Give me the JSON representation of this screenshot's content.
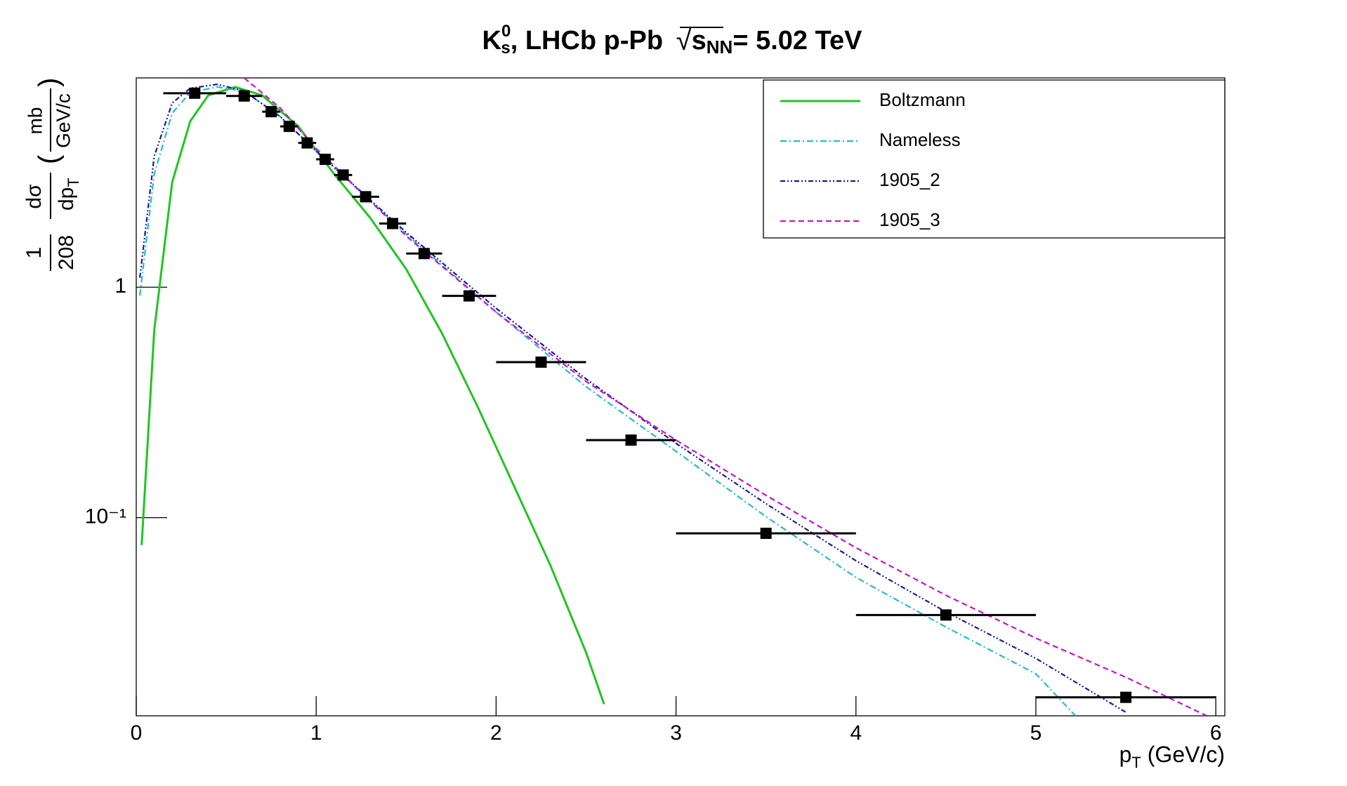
{
  "chart_data": {
    "type": "scatter",
    "title": [
      "K",
      "0",
      "s",
      ", LHCb p-Pb ",
      "√",
      "s",
      "NN",
      "= 5.02 TeV"
    ],
    "x_label": [
      "p",
      "T",
      " (GeV/c)"
    ],
    "y_label": [
      "1",
      "208",
      "dσ",
      "dp",
      "T",
      "(",
      "mb",
      "GeV/c",
      ")"
    ],
    "xlim": [
      0,
      6.05
    ],
    "xticks": [
      0,
      1,
      2,
      3,
      4,
      5,
      6
    ],
    "ylim": [
      0.0138,
      8.1
    ],
    "yticks": [
      1,
      {
        "value": 0.1,
        "label": "10⁻¹"
      }
    ],
    "log_y": true,
    "legend": "top-right",
    "points": {
      "color": "#000000",
      "x": [
        0.325,
        0.6,
        0.75,
        0.85,
        0.95,
        1.05,
        1.15,
        1.275,
        1.425,
        1.6,
        1.85,
        2.25,
        2.75,
        3.5,
        4.5,
        5.5
      ],
      "values": [
        6.95,
        6.76,
        5.78,
        4.99,
        4.23,
        3.59,
        3.07,
        2.47,
        1.89,
        1.4,
        0.917,
        0.473,
        0.217,
        0.0855,
        0.0378,
        0.0166
      ],
      "xerr": [
        0.175,
        0.1,
        0.05,
        0.05,
        0.05,
        0.05,
        0.05,
        0.075,
        0.075,
        0.1,
        0.15,
        0.25,
        0.25,
        0.5,
        0.5,
        0.5
      ]
    },
    "series": [
      {
        "name": "Boltzmann",
        "color": "#22c422",
        "linestyle": "solid",
        "x": [
          0.03,
          0.1,
          0.2,
          0.3,
          0.4,
          0.55,
          0.7,
          0.9,
          1.1,
          1.3,
          1.5,
          1.7,
          1.9,
          2.1,
          2.3,
          2.5,
          2.6
        ],
        "values": [
          0.076,
          0.65,
          2.86,
          5.26,
          6.8,
          7.4,
          6.8,
          5.0,
          3.1,
          2.0,
          1.2,
          0.63,
          0.3,
          0.137,
          0.0625,
          0.026,
          0.0155
        ]
      },
      {
        "name": "Nameless",
        "color": "#1fbfc8",
        "linestyle": "dashdot",
        "x": [
          0.02,
          0.1,
          0.2,
          0.3,
          0.45,
          0.6,
          0.8,
          1.0,
          1.5,
          2.0,
          2.5,
          3.0,
          3.5,
          4.0,
          4.5,
          5.0,
          5.22
        ],
        "values": [
          0.92,
          3.1,
          5.7,
          7.0,
          7.4,
          7.1,
          5.5,
          3.9,
          1.7,
          0.78,
          0.37,
          0.194,
          0.101,
          0.055,
          0.0335,
          0.021,
          0.0138
        ]
      },
      {
        "name": "1905_2",
        "color": "#1a1a9a",
        "linestyle": "dashdotdot",
        "x": [
          0.02,
          0.1,
          0.2,
          0.3,
          0.45,
          0.6,
          0.8,
          1.0,
          1.5,
          2.0,
          2.5,
          3.0,
          3.5,
          4.0,
          4.5,
          5.0,
          5.5
        ],
        "values": [
          1.1,
          3.7,
          6.3,
          7.3,
          7.6,
          7.1,
          5.5,
          3.9,
          1.73,
          0.81,
          0.4,
          0.21,
          0.115,
          0.065,
          0.039,
          0.0245,
          0.0143
        ]
      },
      {
        "name": "1905_3",
        "color": "#cc11cc",
        "linestyle": "dashed",
        "x": [
          0.6,
          0.8,
          1.0,
          1.5,
          2.0,
          2.5,
          3.0,
          3.5,
          4.0,
          4.5,
          5.0,
          5.5,
          5.95
        ],
        "values": [
          8.1,
          6.0,
          4.0,
          1.67,
          0.78,
          0.39,
          0.217,
          0.125,
          0.074,
          0.046,
          0.03,
          0.0203,
          0.0138
        ]
      }
    ]
  }
}
